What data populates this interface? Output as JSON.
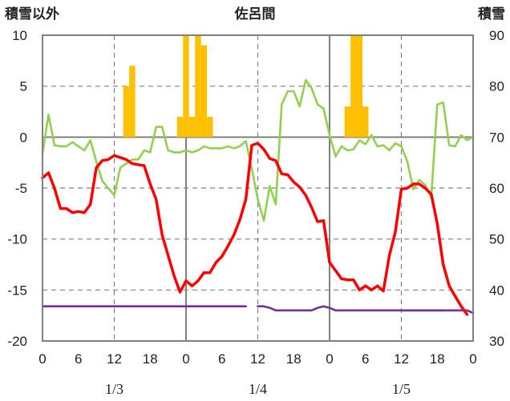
{
  "chart_data": {
    "type": "line",
    "title": "佐呂間",
    "left_axis_label": "積雪以外",
    "right_axis_label": "積雪",
    "left_ylim": [
      -20,
      10
    ],
    "left_yticks": [
      "10",
      "5",
      "0",
      "-5",
      "-10",
      "-15",
      "-20"
    ],
    "right_ylim": [
      30,
      90
    ],
    "right_yticks": [
      "90",
      "80",
      "70",
      "60",
      "50",
      "40",
      "30"
    ],
    "x_range_hours": [
      0,
      72
    ],
    "hour_ticks": [
      "0",
      "6",
      "12",
      "18",
      "0",
      "6",
      "12",
      "18",
      "0",
      "6",
      "12",
      "18",
      "0"
    ],
    "day_labels": [
      "1/3",
      "1/4",
      "1/5"
    ],
    "grid": true,
    "colors": {
      "precipitation": "#FFC000",
      "temperature": "#FF0000",
      "wind": "#92D050",
      "snow_depth": "#7030A0",
      "grid": "#808080",
      "frame": "#808080"
    },
    "series": [
      {
        "key": "precipitation",
        "kind": "bar",
        "axis": "left",
        "hours": [
          14,
          15,
          23,
          24,
          25,
          26,
          27,
          28,
          51,
          52,
          53,
          54,
          55
        ],
        "values": [
          5.0,
          7.0,
          2.0,
          10.0,
          2.0,
          10.0,
          9.0,
          2.0,
          3.0,
          10.0,
          10.0,
          3.0,
          0.0
        ]
      },
      {
        "key": "temperature",
        "kind": "line",
        "axis": "left",
        "values": [
          -4.0,
          -3.5,
          -5.0,
          -7.0,
          -7.0,
          -7.4,
          -7.3,
          -7.4,
          -6.6,
          -3.0,
          -2.3,
          -2.2,
          -1.8,
          -2.0,
          -2.2,
          -2.6,
          -2.7,
          -2.8,
          -4.6,
          -6.1,
          -9.6,
          -11.6,
          -13.6,
          -15.2,
          -14.1,
          -14.6,
          -14.1,
          -13.3,
          -13.3,
          -12.3,
          -11.7,
          -10.7,
          -9.6,
          -8.1,
          -6.1,
          -0.8,
          -0.6,
          -1.2,
          -2.1,
          -2.3,
          -3.6,
          -3.7,
          -4.4,
          -4.9,
          -5.7,
          -6.9,
          -8.3,
          -8.2,
          -12.3,
          -13.1,
          -13.9,
          -14.0,
          -14.0,
          -15.0,
          -14.6,
          -15.0,
          -14.6,
          -15.1,
          -11.6,
          -9.3,
          -5.1,
          -5.0,
          -4.6,
          -4.6,
          -5.0,
          -5.6,
          -8.5,
          -12.5,
          -14.6,
          -15.6,
          -16.6,
          -17.4
        ]
      },
      {
        "key": "wind",
        "kind": "line",
        "axis": "left",
        "values": [
          -1.6,
          2.2,
          -0.8,
          -0.9,
          -0.9,
          -0.5,
          -0.9,
          -1.3,
          -0.3,
          -2.4,
          -4.3,
          -5.0,
          -5.7,
          -3.0,
          -2.6,
          -2.2,
          -2.2,
          -1.3,
          -1.5,
          1.0,
          1.0,
          -1.3,
          -1.5,
          -1.5,
          -1.3,
          -1.5,
          -1.3,
          -0.9,
          -1.1,
          -1.1,
          -1.1,
          -0.9,
          -1.1,
          -0.9,
          -0.4,
          -3.1,
          -6.1,
          -8.2,
          -4.8,
          -6.6,
          3.2,
          4.5,
          4.5,
          3.0,
          5.6,
          4.8,
          3.2,
          2.8,
          0.2,
          -1.9,
          -0.9,
          -1.3,
          -1.2,
          -0.3,
          -0.7,
          0.2,
          -0.9,
          -0.8,
          -1.3,
          -0.6,
          -0.9,
          -2.4,
          -5.1,
          -4.2,
          -4.7,
          -5.9,
          3.2,
          3.4,
          -0.8,
          -0.9,
          0.2,
          -0.3,
          0.0
        ]
      },
      {
        "key": "snow_depth",
        "kind": "line",
        "axis": "right",
        "segments": [
          {
            "start_hour": 0,
            "values": [
              36.8,
              36.8,
              36.8,
              36.8,
              36.8,
              36.8,
              36.8,
              36.8,
              36.8,
              36.8,
              36.8,
              36.8,
              36.8,
              36.8,
              36.8,
              36.8,
              36.8,
              36.8,
              36.8,
              36.8,
              36.8,
              36.8,
              36.8,
              36.8,
              36.8,
              36.8,
              36.8,
              36.8,
              36.8,
              36.8,
              36.8,
              36.8,
              36.8,
              36.8,
              36.8
            ]
          },
          {
            "start_hour": 36,
            "values": [
              36.8,
              36.8,
              36.5,
              36.0,
              36.0,
              36.0,
              36.0,
              36.0,
              36.0,
              36.0,
              36.5,
              36.8,
              36.5,
              36.0,
              36.0,
              36.0,
              36.0,
              36.0,
              36.0,
              36.0,
              36.0,
              36.0,
              36.0,
              36.0,
              36.0,
              36.0,
              36.0,
              36.0,
              36.0,
              36.0,
              36.0,
              36.0
            ]
          },
          {
            "start_hour": 60,
            "values": [
              36.0,
              36.0,
              36.0,
              36.0,
              36.0,
              36.0,
              36.0,
              36.0,
              36.0,
              36.0,
              36.0,
              36.0,
              35.5
            ]
          }
        ]
      }
    ]
  }
}
